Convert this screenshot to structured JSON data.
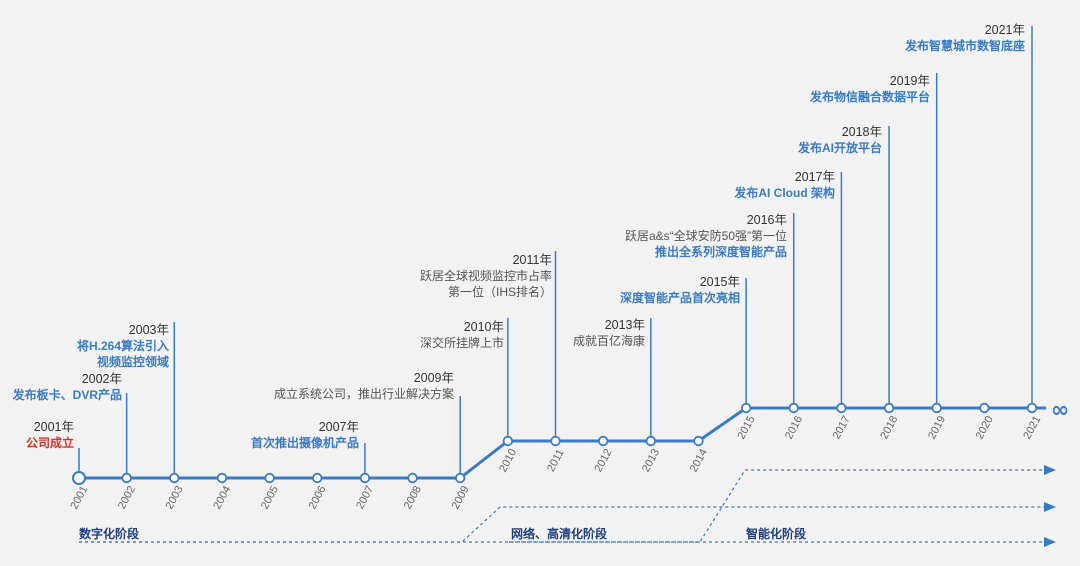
{
  "infinity": "∞",
  "axis_years": [
    "2001",
    "2002",
    "2003",
    "2004",
    "2005",
    "2006",
    "2007",
    "2008",
    "2009",
    "2010",
    "2011",
    "2012",
    "2013",
    "2014",
    "2015",
    "2016",
    "2017",
    "2018",
    "2019",
    "2020",
    "2021"
  ],
  "milestones": {
    "m2001": {
      "year": "2001年",
      "text": "公司成立"
    },
    "m2002": {
      "year": "2002年",
      "text": "发布板卡、DVR产品"
    },
    "m2003": {
      "year": "2003年",
      "line1": "将H.264算法引入",
      "line2": "视频监控领域"
    },
    "m2007": {
      "year": "2007年",
      "text": "首次推出摄像机产品"
    },
    "m2009": {
      "year": "2009年",
      "text": "成立系统公司，推出行业解决方案"
    },
    "m2010": {
      "year": "2010年",
      "text": "深交所挂牌上市"
    },
    "m2011": {
      "year": "2011年",
      "line1": "跃居全球视频监控市占率",
      "line2": "第一位（IHS排名）"
    },
    "m2013": {
      "year": "2013年",
      "text": "成就百亿海康"
    },
    "m2015": {
      "year": "2015年",
      "text": "深度智能产品首次亮相"
    },
    "m2016": {
      "year": "2016年",
      "line1": "跃居a&s“全球安防50强”第一位",
      "line2": "推出全系列深度智能产品"
    },
    "m2017": {
      "year": "2017年",
      "text": "发布AI Cloud 架构"
    },
    "m2018": {
      "year": "2018年",
      "text": "发布AI开放平台"
    },
    "m2019": {
      "year": "2019年",
      "text": "发布物信融合数据平台"
    },
    "m2021": {
      "year": "2021年",
      "text": "发布智慧城市数智底座"
    }
  },
  "stages": {
    "digital": "数字化阶段",
    "network": "网络、高清化阶段",
    "intelligent": "智能化阶段"
  },
  "colors": {
    "line": "#3a7cc2",
    "highlight": "#3a7cc2",
    "founding": "#d9302b",
    "stage_text": "#1f3f80",
    "background": "#f2f2f2"
  }
}
